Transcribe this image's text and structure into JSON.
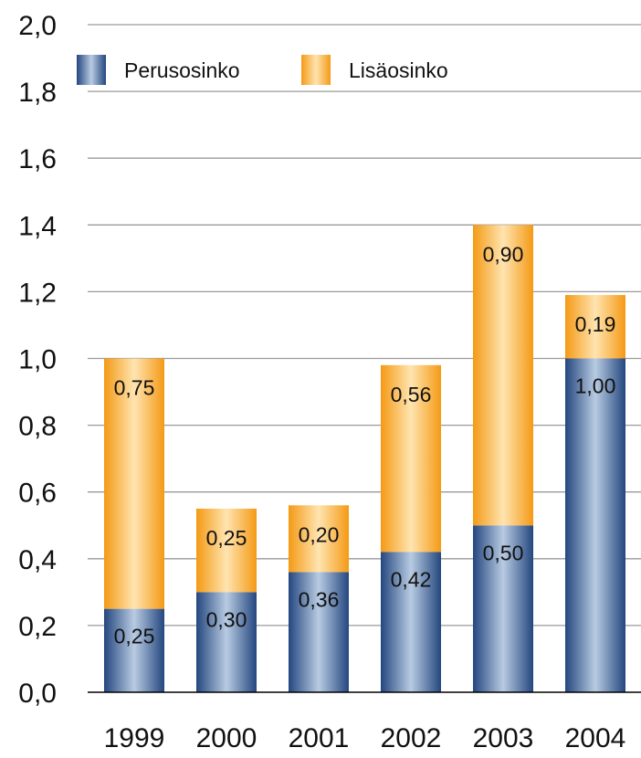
{
  "chart_data": {
    "type": "bar",
    "stacked": true,
    "categories": [
      "1999",
      "2000",
      "2001",
      "2002",
      "2003",
      "2004"
    ],
    "series": [
      {
        "name": "Perusosinko",
        "values": [
          0.25,
          0.3,
          0.36,
          0.42,
          0.5,
          1.0
        ],
        "labels": [
          "0,25",
          "0,30",
          "0,36",
          "0,42",
          "0,50",
          "1,00"
        ]
      },
      {
        "name": "Lisäosinko",
        "values": [
          0.75,
          0.25,
          0.2,
          0.56,
          0.9,
          0.19
        ],
        "labels": [
          "0,75",
          "0,25",
          "0,20",
          "0,56",
          "0,90",
          "0,19"
        ]
      }
    ],
    "yticks": [
      "0,0",
      "0,2",
      "0,4",
      "0,6",
      "0,8",
      "1,0",
      "1,2",
      "1,4",
      "1,6",
      "1,8",
      "2,0"
    ],
    "ylim": [
      0,
      2.0
    ],
    "grid": true,
    "legend_position": "top-left",
    "colors": {
      "base_dark": "#2a4f8e",
      "base_light": "#b4c8e0",
      "extra_dark": "#f5a021",
      "extra_light": "#ffe2ad",
      "grid": "#9a9a9a",
      "axis": "#000000"
    }
  }
}
